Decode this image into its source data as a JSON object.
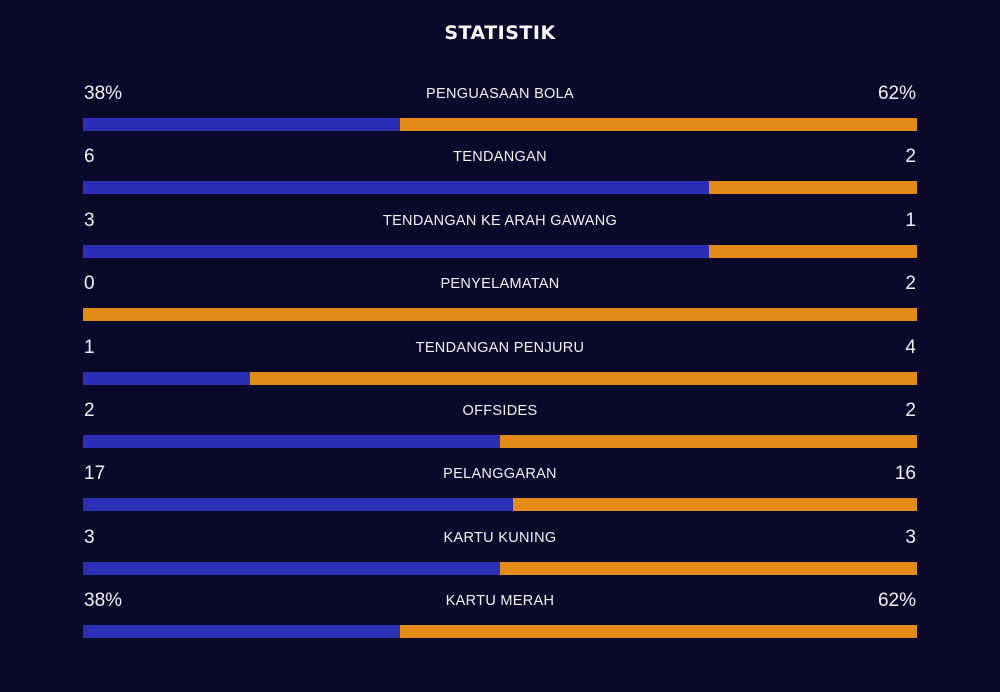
{
  "title": "STATISTIK",
  "colors": {
    "background": "#09082a",
    "home": "#2b2fb6",
    "away": "#e48a17",
    "text": "#ffffff"
  },
  "stats": [
    {
      "label": "PENGUASAAN BOLA",
      "home": "38%",
      "away": "62%",
      "home_share": 0.38
    },
    {
      "label": "TENDANGAN",
      "home": "6",
      "away": "2",
      "home_share": 0.75
    },
    {
      "label": "TENDANGAN KE ARAH GAWANG",
      "home": "3",
      "away": "1",
      "home_share": 0.75
    },
    {
      "label": "PENYELAMATAN",
      "home": "0",
      "away": "2",
      "home_share": 0.0
    },
    {
      "label": "TENDANGAN PENJURU",
      "home": "1",
      "away": "4",
      "home_share": 0.2
    },
    {
      "label": "OFFSIDES",
      "home": "2",
      "away": "2",
      "home_share": 0.5
    },
    {
      "label": "PELANGGARAN",
      "home": "17",
      "away": "16",
      "home_share": 0.515
    },
    {
      "label": "KARTU KUNING",
      "home": "3",
      "away": "3",
      "home_share": 0.5
    },
    {
      "label": "KARTU MERAH",
      "home": "38%",
      "away": "62%",
      "home_share": 0.38
    }
  ]
}
